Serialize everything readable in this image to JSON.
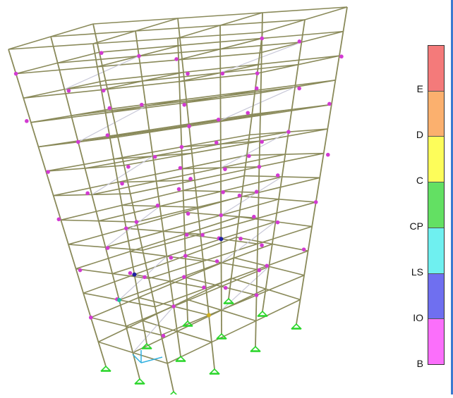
{
  "legend": {
    "levels": [
      {
        "label": "E",
        "color": "#f47a7a"
      },
      {
        "label": "D",
        "color": "#fbb06e"
      },
      {
        "label": "C",
        "color": "#fdfd5a"
      },
      {
        "label": "CP",
        "color": "#63e063"
      },
      {
        "label": "LS",
        "color": "#6ff0f0"
      },
      {
        "label": "IO",
        "color": "#6f6ff0"
      },
      {
        "label": "B",
        "color": "#fb6ffb"
      }
    ]
  },
  "model": {
    "frame_color": "#8a8a5a",
    "brace_color": "#c8c8d8",
    "support_color": "#2bd62b",
    "hinge_color": "#d23ad2",
    "stories": 13
  }
}
